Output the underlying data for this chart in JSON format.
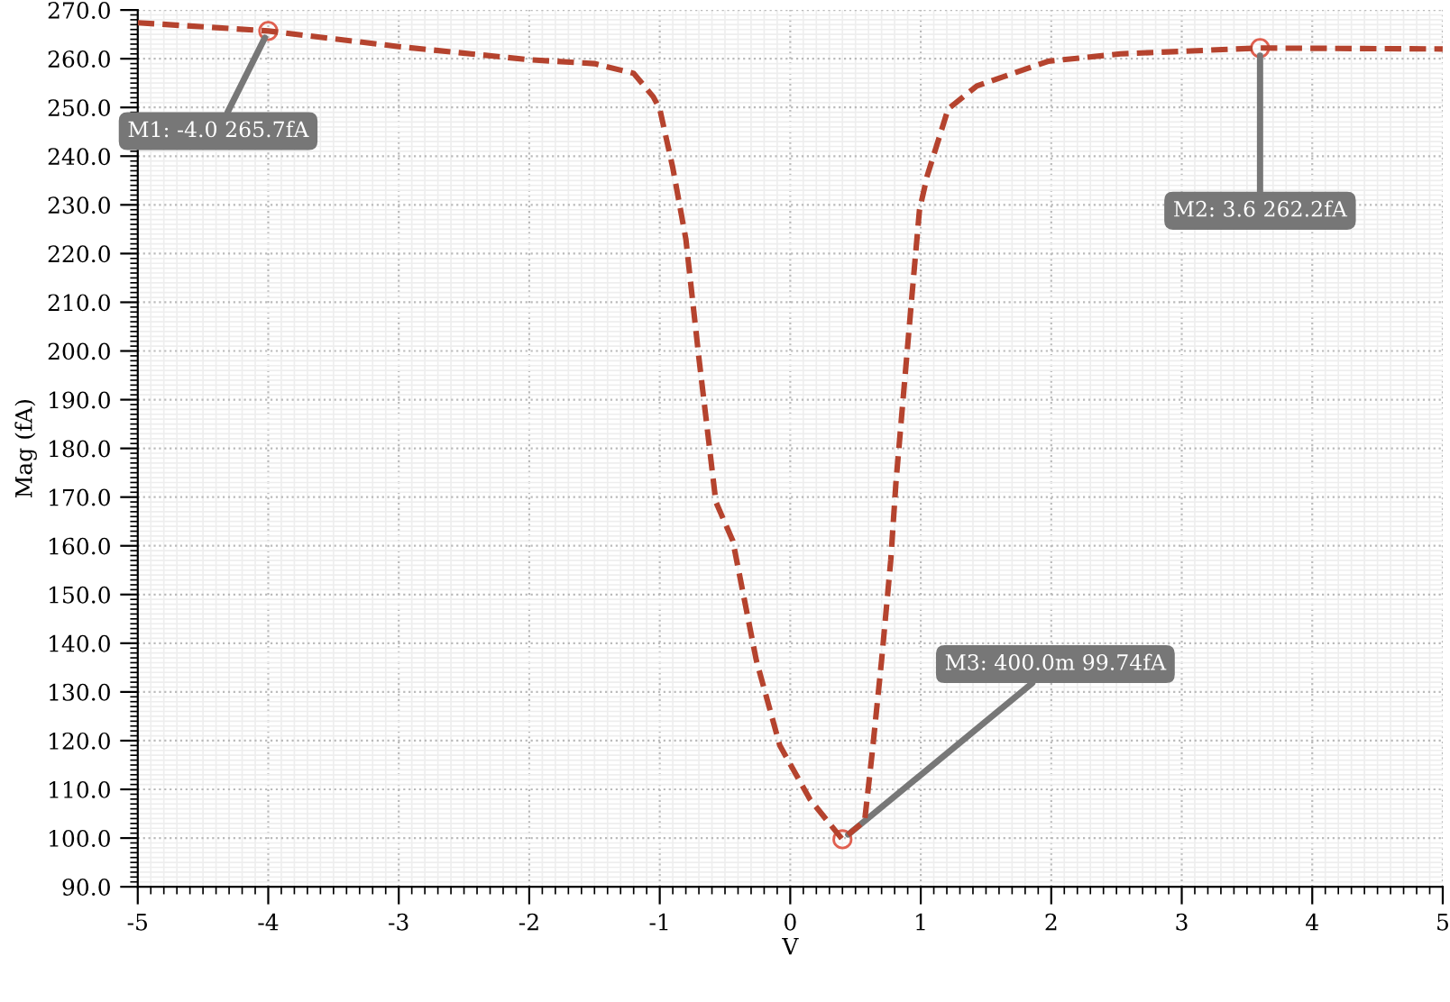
{
  "chart_data": {
    "type": "line",
    "xlabel": "V",
    "ylabel": "Mag (fA)",
    "series": [
      {
        "color": "#b5432e",
        "line_style": "dashed",
        "x": [
          -5,
          -4,
          -3,
          -2,
          -1.5,
          -1.2,
          -1.05,
          -1,
          -0.9,
          -0.8,
          -0.7,
          -0.57,
          -0.44,
          -0.26,
          -0.08,
          0.15,
          0.4,
          0.57,
          0.63,
          0.7,
          0.77,
          0.81,
          0.93,
          0.99,
          1.05,
          1.21,
          1.43,
          1.98,
          2.53,
          3.6,
          5
        ],
        "values": [
          267.4,
          265.7,
          262.5,
          259.8,
          259,
          257,
          252.2,
          249.7,
          237.6,
          223,
          198.6,
          169,
          161,
          136.5,
          119,
          108,
          99.7,
          103.5,
          118,
          136.5,
          157,
          173,
          210.6,
          228.9,
          236,
          249.7,
          254.4,
          259.5,
          261,
          262.2,
          262
        ]
      }
    ],
    "xlim": [
      -5,
      5
    ],
    "xticks": [
      -5,
      -4,
      -3,
      -2,
      -1,
      0,
      1,
      2,
      3,
      4,
      5
    ],
    "ylim": [
      90,
      270
    ],
    "yticks": [
      {
        "value": 90,
        "label": "90.0"
      },
      {
        "value": 100,
        "label": "100.0"
      },
      {
        "value": 110,
        "label": "110.0"
      },
      {
        "value": 120,
        "label": "120.0"
      },
      {
        "value": 130,
        "label": "130.0"
      },
      {
        "value": 140,
        "label": "140.0"
      },
      {
        "value": 150,
        "label": "150.0"
      },
      {
        "value": 160,
        "label": "160.0"
      },
      {
        "value": 170,
        "label": "170.0"
      },
      {
        "value": 180,
        "label": "180.0"
      },
      {
        "value": 190,
        "label": "190.0"
      },
      {
        "value": 200,
        "label": "200.0"
      },
      {
        "value": 210,
        "label": "210.0"
      },
      {
        "value": 220,
        "label": "220.0"
      },
      {
        "value": 230,
        "label": "230.0"
      },
      {
        "value": 240,
        "label": "240.0"
      },
      {
        "value": 250,
        "label": "250.0"
      },
      {
        "value": 260,
        "label": "260.0"
      },
      {
        "value": 270,
        "label": "270.0"
      }
    ],
    "grid": true,
    "annotations": [
      {
        "text": "M1: -4.0 265.7fA",
        "x": -4,
        "y": 265.7
      },
      {
        "text": "M2: 3.6 262.2fA",
        "x": 3.6,
        "y": 262.2
      },
      {
        "text": "M3: 400.0m 99.74fA",
        "x": 0.4,
        "y": 99.74
      }
    ]
  }
}
